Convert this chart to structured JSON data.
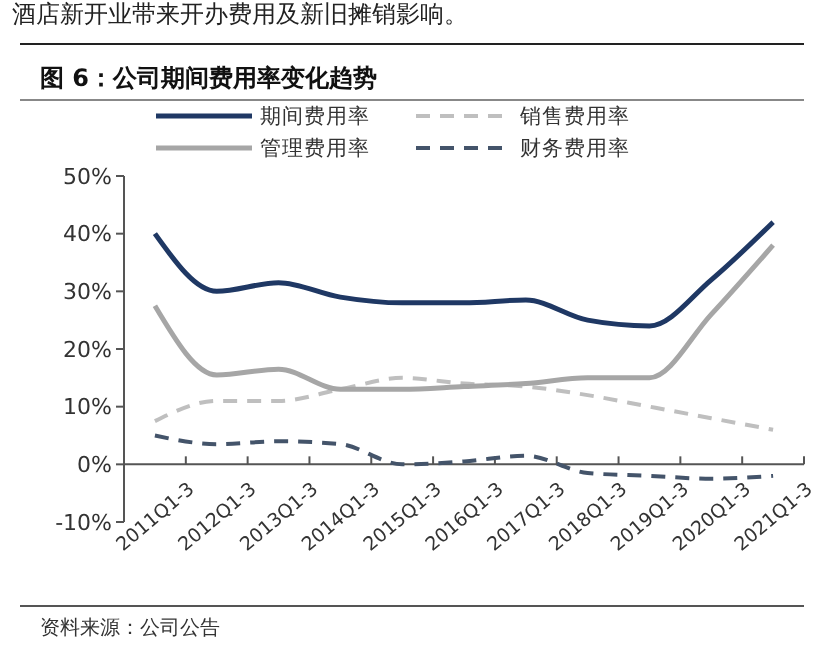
{
  "chart_data": {
    "type": "line",
    "title": "图 6：公司期间费用率变化趋势",
    "categories": [
      "2011Q1-3",
      "2012Q1-3",
      "2013Q1-3",
      "2014Q1-3",
      "2015Q1-3",
      "2016Q1-3",
      "2017Q1-3",
      "2018Q1-3",
      "2019Q1-3",
      "2020Q1-3",
      "2021Q1-3"
    ],
    "series": [
      {
        "name": "期间费用率",
        "color": "#1f3864",
        "line_style": "solid",
        "values": [
          40,
          30,
          31.5,
          29,
          28,
          28,
          28.5,
          25,
          24,
          32,
          42
        ]
      },
      {
        "name": "销售费用率",
        "color": "#bfbfbf",
        "line_style": "dashed",
        "values": [
          7.5,
          11,
          11,
          13,
          15,
          14,
          13.5,
          12,
          10,
          8,
          6
        ]
      },
      {
        "name": "管理费用率",
        "color": "#a6a6a6",
        "line_style": "solid",
        "values": [
          27.5,
          15.5,
          16.5,
          13,
          13,
          13.5,
          14,
          15,
          15,
          26,
          38
        ]
      },
      {
        "name": "财务费用率",
        "color": "#44546a",
        "line_style": "dashed",
        "values": [
          5,
          3.5,
          4,
          3.5,
          0,
          0.5,
          1.5,
          -1.5,
          -2,
          -2.5,
          -2
        ]
      }
    ],
    "ylim": [
      -10,
      50
    ],
    "yticks": [
      {
        "value": -10,
        "label": "-10%"
      },
      {
        "value": 0,
        "label": "0%"
      },
      {
        "value": 10,
        "label": "10%"
      },
      {
        "value": 20,
        "label": "20%"
      },
      {
        "value": 30,
        "label": "30%"
      },
      {
        "value": 40,
        "label": "40%"
      },
      {
        "value": 50,
        "label": "50%"
      }
    ],
    "grid": false,
    "legend": "top",
    "marker": "none",
    "annotations": [
      "酒店新开业带来开办费用及新旧摊销影响。",
      "资料来源：公司公告"
    ]
  }
}
